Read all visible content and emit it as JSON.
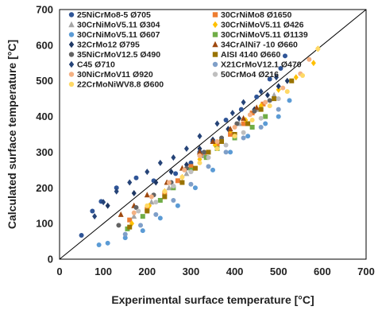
{
  "chart_data": {
    "type": "scatter",
    "xlabel": "Experimental surface temperature [°C]",
    "ylabel": "Calculated surface temperature [°C]",
    "xlim": [
      0,
      700
    ],
    "ylim": [
      0,
      700
    ],
    "xticks": [
      0,
      100,
      200,
      300,
      400,
      500,
      600,
      700
    ],
    "yticks": [
      0,
      100,
      200,
      300,
      400,
      500,
      600,
      700
    ],
    "grid": false,
    "legend_position": "top-left",
    "reference_line": "y = x",
    "series": [
      {
        "name": "25NiCrMo8-5 Ø705",
        "marker": "circle",
        "color": "#2f5597",
        "points": [
          [
            50,
            67
          ],
          [
            75,
            135
          ],
          [
            95,
            162
          ],
          [
            130,
            200
          ],
          [
            175,
            228
          ],
          [
            215,
            220
          ],
          [
            265,
            240
          ],
          [
            300,
            270
          ],
          [
            320,
            300
          ],
          [
            350,
            330
          ],
          [
            380,
            390
          ],
          [
            415,
            420
          ],
          [
            450,
            455
          ],
          [
            480,
            505
          ],
          [
            505,
            535
          ],
          [
            515,
            570
          ]
        ]
      },
      {
        "name": "30CrNiMo8 Ø1650",
        "marker": "square",
        "color": "#ed7d31",
        "points": [
          [
            160,
            110
          ],
          [
            200,
            140
          ],
          [
            240,
            185
          ],
          [
            270,
            220
          ],
          [
            300,
            260
          ],
          [
            330,
            290
          ],
          [
            360,
            320
          ],
          [
            390,
            350
          ],
          [
            420,
            380
          ],
          [
            440,
            410
          ],
          [
            465,
            435
          ]
        ]
      },
      {
        "name": "30CrNiMoV5.11 Ø304",
        "marker": "triangle",
        "color": "#a5a5a5",
        "points": [
          [
            170,
            120
          ],
          [
            210,
            160
          ],
          [
            250,
            200
          ],
          [
            290,
            240
          ],
          [
            330,
            290
          ],
          [
            370,
            330
          ],
          [
            410,
            380
          ],
          [
            450,
            420
          ],
          [
            490,
            460
          ]
        ]
      },
      {
        "name": "30CrNiMoV5.11 Ø426",
        "marker": "diamond",
        "color": "#ffc000",
        "points": [
          [
            165,
            100
          ],
          [
            205,
            150
          ],
          [
            240,
            190
          ],
          [
            280,
            230
          ],
          [
            320,
            280
          ],
          [
            355,
            320
          ],
          [
            390,
            360
          ],
          [
            425,
            390
          ],
          [
            460,
            430
          ],
          [
            500,
            475
          ],
          [
            540,
            510
          ],
          [
            580,
            550
          ],
          [
            590,
            590
          ]
        ]
      },
      {
        "name": "30CrNiMoV5.11 Ø607",
        "marker": "circle",
        "color": "#5b9bd5",
        "points": [
          [
            90,
            40
          ],
          [
            110,
            45
          ],
          [
            150,
            60
          ],
          [
            190,
            80
          ],
          [
            230,
            115
          ],
          [
            270,
            150
          ],
          [
            310,
            200
          ],
          [
            350,
            250
          ],
          [
            390,
            300
          ],
          [
            430,
            345
          ],
          [
            470,
            380
          ],
          [
            500,
            400
          ],
          [
            525,
            445
          ]
        ]
      },
      {
        "name": "30CrNiMoV5.11 Ø1139",
        "marker": "square",
        "color": "#70ad47",
        "points": [
          [
            155,
            85
          ],
          [
            190,
            120
          ],
          [
            230,
            165
          ],
          [
            260,
            200
          ],
          [
            300,
            250
          ],
          [
            335,
            285
          ],
          [
            360,
            310
          ],
          [
            400,
            340
          ],
          [
            440,
            370
          ],
          [
            470,
            400
          ]
        ]
      },
      {
        "name": "32CrMo12 Ø795",
        "marker": "diamond",
        "color": "#1f3864",
        "points": [
          [
            110,
            150
          ],
          [
            170,
            185
          ],
          [
            220,
            215
          ],
          [
            255,
            245
          ],
          [
            290,
            265
          ],
          [
            320,
            310
          ],
          [
            350,
            335
          ],
          [
            385,
            365
          ],
          [
            410,
            395
          ],
          [
            445,
            420
          ],
          [
            475,
            460
          ],
          [
            500,
            485
          ],
          [
            520,
            500
          ]
        ]
      },
      {
        "name": "34CrAlNi7 -10 Ø660",
        "marker": "triangle",
        "color": "#9e480e",
        "points": [
          [
            140,
            125
          ],
          [
            170,
            150
          ],
          [
            200,
            180
          ],
          [
            245,
            215
          ],
          [
            280,
            255
          ],
          [
            320,
            300
          ],
          [
            350,
            330
          ],
          [
            390,
            365
          ],
          [
            420,
            395
          ],
          [
            450,
            425
          ]
        ]
      },
      {
        "name": "35NiCrMoV12.5 Ø490",
        "marker": "circle",
        "color": "#636363",
        "points": [
          [
            135,
            95
          ],
          [
            175,
            145
          ],
          [
            215,
            180
          ],
          [
            255,
            215
          ],
          [
            290,
            255
          ],
          [
            330,
            300
          ],
          [
            370,
            340
          ],
          [
            405,
            380
          ],
          [
            445,
            415
          ],
          [
            480,
            445
          ]
        ]
      },
      {
        "name": "AISI 4140 Ø660",
        "marker": "square",
        "color": "#997300",
        "points": [
          [
            160,
            90
          ],
          [
            200,
            135
          ],
          [
            240,
            175
          ],
          [
            280,
            215
          ],
          [
            310,
            255
          ],
          [
            340,
            300
          ],
          [
            370,
            330
          ],
          [
            400,
            350
          ],
          [
            430,
            380
          ],
          [
            460,
            420
          ],
          [
            490,
            450
          ],
          [
            530,
            500
          ]
        ]
      },
      {
        "name": "C45 Ø710",
        "marker": "diamond",
        "color": "#264478",
        "points": [
          [
            80,
            120
          ],
          [
            100,
            160
          ],
          [
            130,
            190
          ],
          [
            160,
            215
          ],
          [
            200,
            245
          ],
          [
            230,
            270
          ],
          [
            260,
            285
          ],
          [
            290,
            310
          ],
          [
            320,
            345
          ],
          [
            360,
            380
          ],
          [
            395,
            410
          ],
          [
            420,
            440
          ],
          [
            460,
            470
          ],
          [
            495,
            510
          ]
        ]
      },
      {
        "name": "X21CrMoV12.1 Ø470",
        "marker": "circle",
        "color": "#7f9fc8",
        "points": [
          [
            150,
            70
          ],
          [
            185,
            95
          ],
          [
            220,
            125
          ],
          [
            260,
            165
          ],
          [
            300,
            210
          ],
          [
            340,
            260
          ],
          [
            380,
            300
          ],
          [
            420,
            340
          ],
          [
            460,
            370
          ],
          [
            500,
            420
          ]
        ]
      },
      {
        "name": "30NiCrMoV11 Ø920",
        "marker": "circle",
        "color": "#f4b183",
        "points": [
          [
            170,
            130
          ],
          [
            210,
            175
          ],
          [
            250,
            215
          ],
          [
            285,
            250
          ],
          [
            320,
            290
          ],
          [
            360,
            330
          ],
          [
            400,
            370
          ],
          [
            435,
            405
          ],
          [
            470,
            440
          ],
          [
            510,
            480
          ],
          [
            550,
            520
          ],
          [
            570,
            560
          ]
        ]
      },
      {
        "name": "50CrMo4 Ø216",
        "marker": "circle",
        "color": "#bfbfbf",
        "points": [
          [
            180,
            135
          ],
          [
            220,
            160
          ],
          [
            260,
            205
          ],
          [
            300,
            245
          ],
          [
            340,
            285
          ],
          [
            380,
            320
          ],
          [
            420,
            355
          ],
          [
            460,
            395
          ],
          [
            500,
            450
          ]
        ]
      },
      {
        "name": "22CrMoNiWV8.8 Ø600",
        "marker": "circle",
        "color": "#ffd966",
        "points": [
          [
            200,
            150
          ],
          [
            240,
            190
          ],
          [
            280,
            230
          ],
          [
            320,
            270
          ],
          [
            360,
            310
          ],
          [
            400,
            345
          ],
          [
            440,
            390
          ],
          [
            480,
            430
          ],
          [
            520,
            470
          ],
          [
            555,
            515
          ],
          [
            590,
            590
          ]
        ]
      }
    ]
  }
}
